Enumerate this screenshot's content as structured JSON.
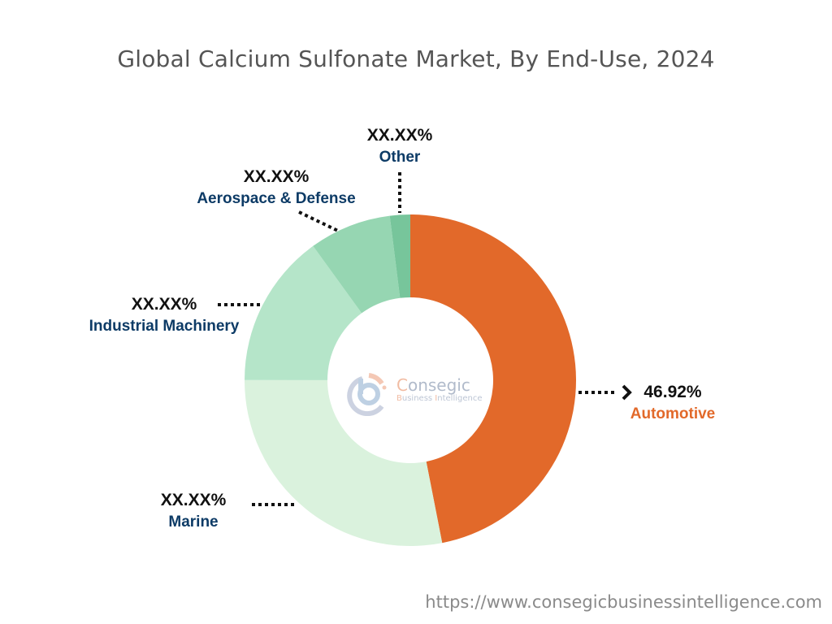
{
  "title": "Global Calcium Sulfonate Market, By End-Use, 2024",
  "footer": {
    "url": "https://www.consegicbusinessintelligence.com"
  },
  "watermark": {
    "brand": "Consegic",
    "tagline": "Business Intelligence"
  },
  "labels": {
    "automotive": {
      "pct": "46.92%",
      "name": "Automotive",
      "color": "#e2692a"
    },
    "marine": {
      "pct": "XX.XX%",
      "name": "Marine",
      "color": "#0d3b66"
    },
    "industrial": {
      "pct": "XX.XX%",
      "name": "Industrial Machinery",
      "color": "#0d3b66"
    },
    "aerospace": {
      "pct": "XX.XX%",
      "name": "Aerospace & Defense",
      "color": "#0d3b66"
    },
    "other": {
      "pct": "XX.XX%",
      "name": "Other",
      "color": "#0d3b66"
    }
  },
  "chart_data": {
    "type": "pie",
    "variant": "donut",
    "title": "Global Calcium Sulfonate Market, By End-Use, 2024",
    "categories": [
      "Automotive",
      "Marine",
      "Industrial Machinery",
      "Aerospace & Defense",
      "Other"
    ],
    "values": [
      46.92,
      28.1,
      15.0,
      8.0,
      1.98
    ],
    "value_labels": [
      "46.92%",
      "XX.XX%",
      "XX.XX%",
      "XX.XX%",
      "XX.XX%"
    ],
    "colors": [
      "#e2692a",
      "#daf2dd",
      "#b5e5c9",
      "#96d6b2",
      "#77c59b"
    ],
    "start_angle_deg": 0,
    "direction": "clockwise",
    "center": [
      505,
      468
    ],
    "outer_radius": 204,
    "inner_radius": 102,
    "legend": "none (callout labels)"
  }
}
